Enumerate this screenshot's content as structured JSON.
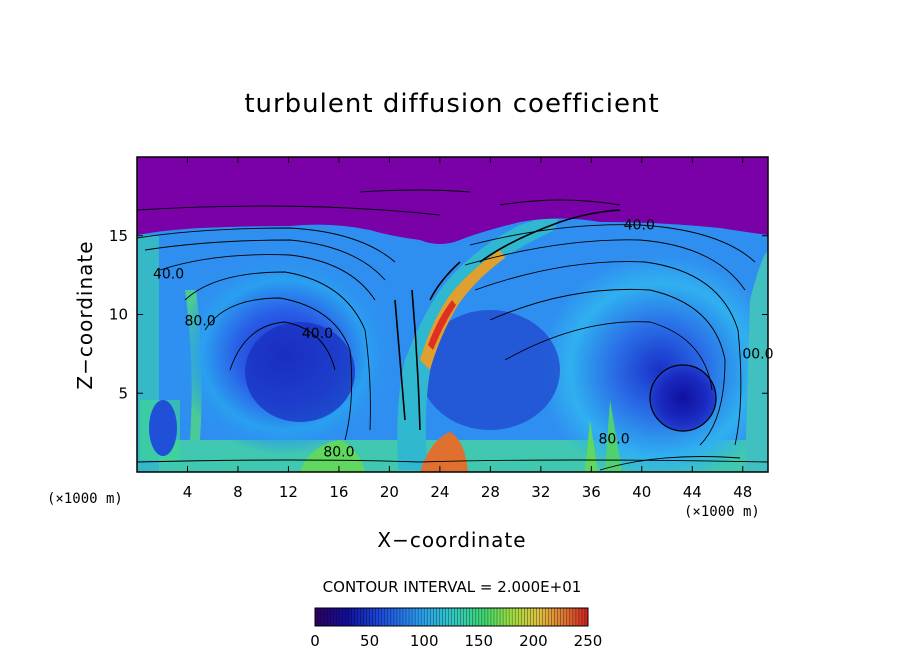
{
  "chart_data": {
    "type": "heatmap",
    "title": "turbulent diffusion coefficient",
    "xlabel": "X−coordinate",
    "ylabel": "Z−coordinate",
    "x_unit_left": "(×1000 m)",
    "x_unit_right": "(×1000 m)",
    "xlim": [
      0,
      50
    ],
    "ylim": [
      0,
      20
    ],
    "x_ticks": [
      4,
      8,
      12,
      16,
      20,
      24,
      28,
      32,
      36,
      40,
      44,
      48
    ],
    "x_tick_labels": [
      "4",
      "8",
      "12",
      "16",
      "20",
      "24",
      "28",
      "32",
      "36",
      "40",
      "44",
      "48"
    ],
    "y_ticks": [
      5,
      10,
      15
    ],
    "y_tick_labels": [
      "5",
      "10",
      "15"
    ],
    "contour_interval_text": "CONTOUR INTERVAL = 2.000E+01",
    "contour_labels": [
      {
        "text": "40.0",
        "x": 2.5,
        "z": 12.3
      },
      {
        "text": "80.0",
        "x": 5.0,
        "z": 9.3
      },
      {
        "text": "40.0",
        "x": 14.3,
        "z": 8.5
      },
      {
        "text": "80.0",
        "x": 16.0,
        "z": 1.0
      },
      {
        "text": "40.0",
        "x": 39.8,
        "z": 15.4
      },
      {
        "text": "80.0",
        "x": 37.8,
        "z": 1.8
      },
      {
        "text": "00.0",
        "x": 49.2,
        "z": 7.2
      }
    ],
    "colorbar": {
      "min": 0,
      "max": 250,
      "ticks": [
        0,
        50,
        100,
        150,
        200,
        250
      ],
      "tick_labels": [
        "0",
        "50",
        "100",
        "150",
        "200",
        "250"
      ]
    },
    "colors": {
      "background_top": "#7a00a8",
      "low": "#1a1ab0",
      "mid": "#2f8cf0",
      "high": "#30c8c0",
      "higher": "#60e060",
      "peak": "#e03020"
    }
  }
}
